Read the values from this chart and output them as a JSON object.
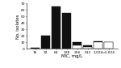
{
  "categories": [
    "16",
    "32",
    "64",
    "128",
    "256",
    "512",
    "1,024",
    ">1,024"
  ],
  "black_bars": [
    2,
    20,
    65,
    55,
    10,
    5,
    12,
    10
  ],
  "white_bars": [
    0,
    0,
    0,
    0,
    5,
    3,
    10,
    10
  ],
  "ylim": [
    0,
    70
  ],
  "yticks": [
    0,
    10,
    20,
    30,
    40,
    50,
    60,
    70
  ],
  "xlabel": "MIC, mg/L",
  "ylabel": "No. isolates",
  "bar_width": 0.85,
  "black_color": "#111111",
  "white_color": "#ffffff",
  "edge_color": "#111111",
  "bg_color": "#ffffff",
  "axis_fontsize": 3.8,
  "tick_fontsize": 3.2,
  "edge_lw": 0.3
}
